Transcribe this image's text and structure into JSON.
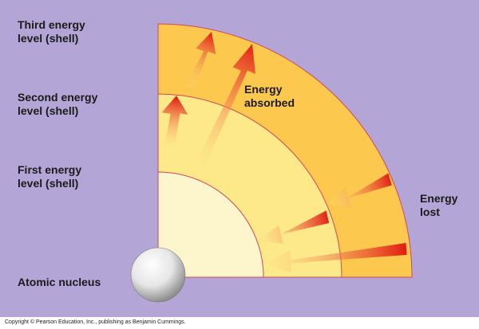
{
  "labels": {
    "third_shell": [
      "Third energy",
      "level (shell)"
    ],
    "second_shell": [
      "Second energy",
      "level (shell)"
    ],
    "first_shell": [
      "First energy",
      "level (shell)"
    ],
    "nucleus": "Atomic nucleus",
    "energy_absorbed": [
      "Energy",
      "absorbed"
    ],
    "energy_lost": [
      "Energy",
      "lost"
    ]
  },
  "copyright": "Copyright © Pearson Education, Inc., publishing as Benjamin Cummings.",
  "colors": {
    "background": "#b3a6d6",
    "outer_shell": "#fcc84e",
    "middle_shell": "#fde88a",
    "inner_shell": "#fdf6cd",
    "shell_border": "#d04a5a",
    "arrow_tip": "#e21e12",
    "arrow_tail": "#ffe68a"
  },
  "icons": {
    "nucleus": "sphere-icon",
    "absorbed_arrows": "arrow-up-icon",
    "lost_arrows": "arrow-left-icon"
  }
}
